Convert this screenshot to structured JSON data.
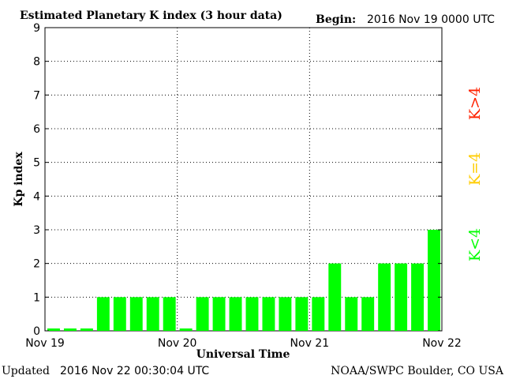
{
  "header": {
    "title": "Estimated Planetary K index (3 hour data)",
    "begin_label": "Begin:",
    "begin_value": "2016 Nov 19 0000 UTC"
  },
  "footer": {
    "updated_label": "Updated",
    "updated_value": "2016 Nov 22 00:30:04 UTC",
    "credit": "NOAA/SWPC Boulder, CO USA"
  },
  "legend": {
    "items": [
      {
        "label": "K<4",
        "color": "#00ff00"
      },
      {
        "label": "K=4",
        "color": "#ffcc00"
      },
      {
        "label": "K>4",
        "color": "#ff2200"
      }
    ]
  },
  "chart_data": {
    "type": "bar",
    "title": "Estimated Planetary K index (3 hour data)",
    "xlabel": "Universal Time",
    "ylabel": "Kp index",
    "ylim": [
      0,
      9
    ],
    "yticks": [
      0,
      1,
      2,
      3,
      4,
      5,
      6,
      7,
      8,
      9
    ],
    "xtick_labels": [
      "Nov 19",
      "Nov 20",
      "Nov 21",
      "Nov 22"
    ],
    "grid": "dotted vertical day lines and dotted horizontal lines at each integer",
    "bar_color": "#00ff00",
    "values": [
      0.05,
      0.05,
      0.05,
      1,
      1,
      1,
      1,
      1,
      0.05,
      1,
      1,
      1,
      1,
      1,
      1,
      1,
      1,
      2,
      1,
      1,
      2,
      2,
      2,
      3
    ]
  }
}
